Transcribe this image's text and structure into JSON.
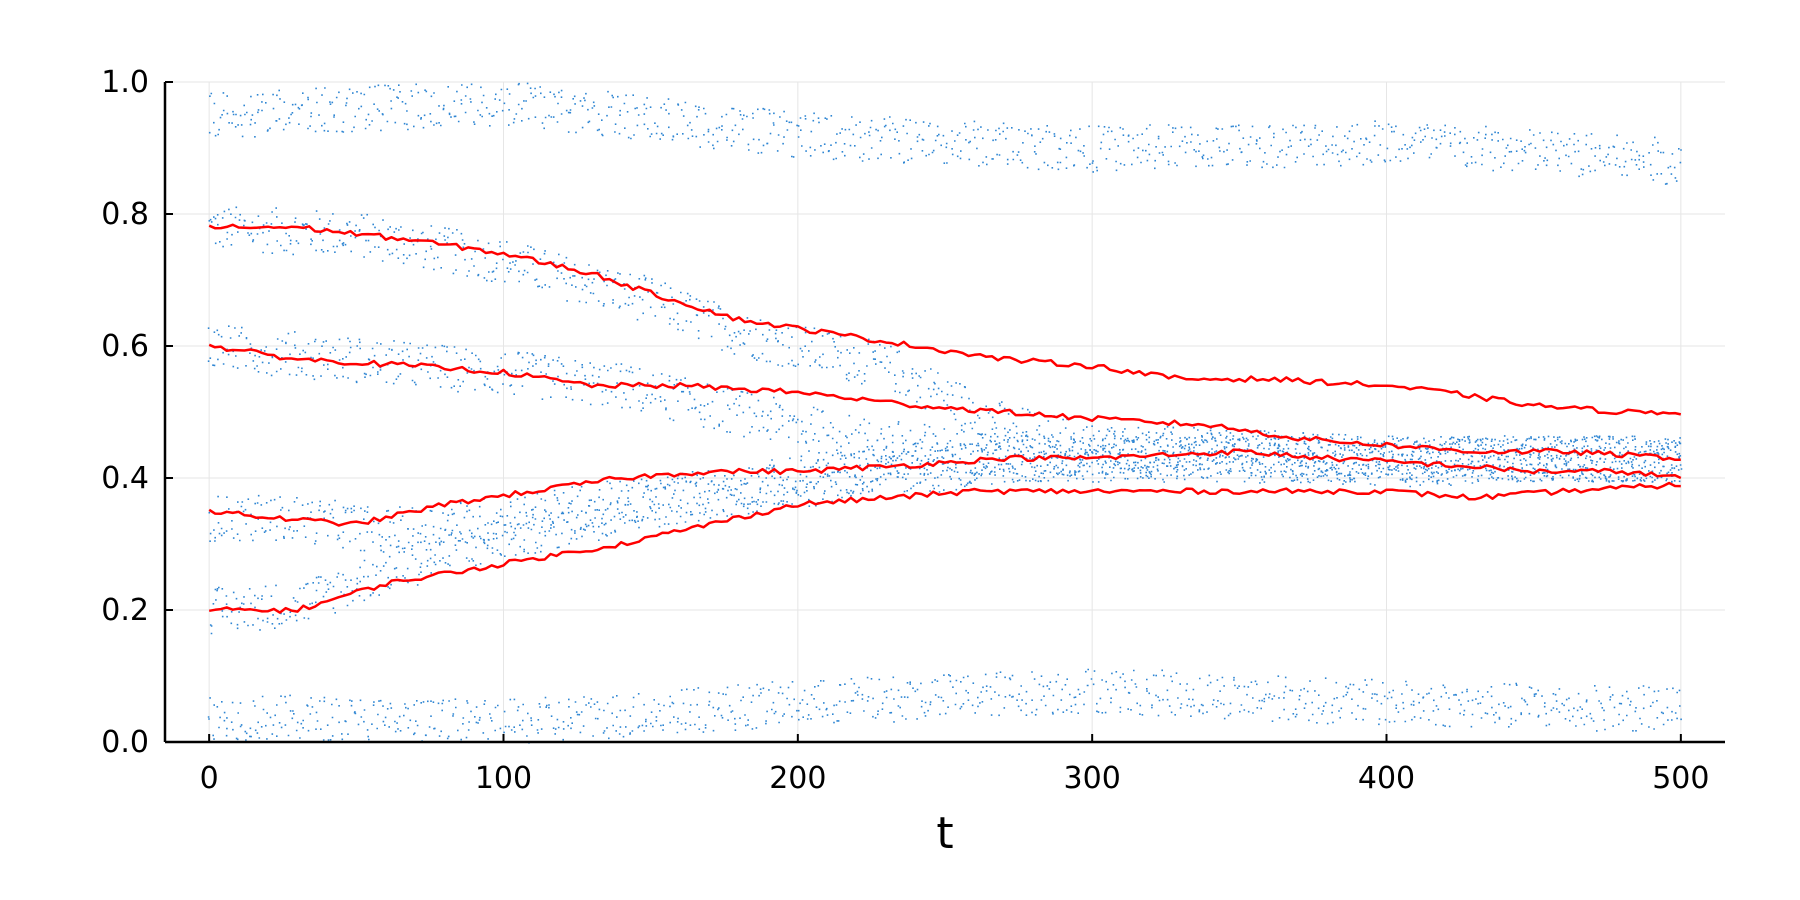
{
  "chart_data": {
    "type": "scatter",
    "title": "",
    "xlabel": "t",
    "ylabel": "",
    "xlim": [
      -15,
      515
    ],
    "ylim": [
      0,
      1
    ],
    "x_ticks": [
      "0",
      "100",
      "200",
      "300",
      "400",
      "500"
    ],
    "y_ticks": [
      "0.0",
      "0.2",
      "0.4",
      "0.6",
      "0.8",
      "1.0"
    ],
    "grid": true,
    "legend": "none",
    "colors": {
      "scatter": "#2f86d3",
      "lines": "#ff0000",
      "grid": "#e6e6e6",
      "axis": "#000000"
    },
    "series": [
      {
        "kind": "scatter-band",
        "points": [
          [
            0,
            0.78
          ],
          [
            50,
            0.77
          ],
          [
            100,
            0.73
          ],
          [
            150,
            0.67
          ],
          [
            180,
            0.62
          ],
          [
            230,
            0.57
          ],
          [
            270,
            0.48
          ],
          [
            300,
            0.45
          ],
          [
            350,
            0.44
          ],
          [
            400,
            0.43
          ],
          [
            450,
            0.43
          ],
          [
            500,
            0.43
          ]
        ]
      },
      {
        "kind": "scatter-band",
        "points": [
          [
            0,
            0.6
          ],
          [
            50,
            0.58
          ],
          [
            100,
            0.56
          ],
          [
            140,
            0.54
          ],
          [
            180,
            0.5
          ],
          [
            220,
            0.46
          ],
          [
            260,
            0.44
          ],
          [
            300,
            0.43
          ],
          [
            350,
            0.43
          ],
          [
            400,
            0.42
          ],
          [
            450,
            0.43
          ],
          [
            500,
            0.43
          ]
        ]
      },
      {
        "kind": "scatter-band",
        "points": [
          [
            0,
            0.34
          ],
          [
            30,
            0.34
          ],
          [
            60,
            0.32
          ],
          [
            100,
            0.34
          ],
          [
            150,
            0.37
          ],
          [
            200,
            0.4
          ],
          [
            240,
            0.42
          ],
          [
            280,
            0.43
          ],
          [
            350,
            0.44
          ],
          [
            400,
            0.43
          ],
          [
            450,
            0.43
          ],
          [
            500,
            0.43
          ]
        ]
      },
      {
        "kind": "scatter-band",
        "points": [
          [
            0,
            0.2
          ],
          [
            30,
            0.21
          ],
          [
            60,
            0.26
          ],
          [
            100,
            0.31
          ],
          [
            150,
            0.36
          ],
          [
            200,
            0.39
          ],
          [
            240,
            0.41
          ],
          [
            280,
            0.43
          ],
          [
            350,
            0.43
          ],
          [
            400,
            0.43
          ],
          [
            450,
            0.43
          ],
          [
            500,
            0.43
          ]
        ]
      },
      {
        "kind": "scatter-band",
        "points": [
          [
            0,
            0.95
          ],
          [
            100,
            0.97
          ],
          [
            200,
            0.92
          ],
          [
            300,
            0.9
          ],
          [
            400,
            0.91
          ],
          [
            500,
            0.88
          ]
        ]
      },
      {
        "kind": "scatter-band",
        "points": [
          [
            0,
            0.04
          ],
          [
            100,
            0.03
          ],
          [
            200,
            0.06
          ],
          [
            300,
            0.08
          ],
          [
            400,
            0.06
          ],
          [
            500,
            0.05
          ]
        ]
      },
      {
        "kind": "line",
        "points": [
          [
            0,
            0.78
          ],
          [
            30,
            0.78
          ],
          [
            70,
            0.76
          ],
          [
            100,
            0.74
          ],
          [
            130,
            0.71
          ],
          [
            150,
            0.68
          ],
          [
            180,
            0.64
          ],
          [
            210,
            0.62
          ],
          [
            240,
            0.6
          ],
          [
            270,
            0.58
          ],
          [
            300,
            0.57
          ],
          [
            330,
            0.55
          ],
          [
            360,
            0.55
          ],
          [
            400,
            0.54
          ],
          [
            420,
            0.53
          ],
          [
            450,
            0.51
          ],
          [
            480,
            0.5
          ],
          [
            500,
            0.5
          ]
        ]
      },
      {
        "kind": "line",
        "points": [
          [
            0,
            0.6
          ],
          [
            30,
            0.58
          ],
          [
            70,
            0.57
          ],
          [
            100,
            0.56
          ],
          [
            130,
            0.54
          ],
          [
            160,
            0.54
          ],
          [
            200,
            0.53
          ],
          [
            240,
            0.51
          ],
          [
            270,
            0.5
          ],
          [
            300,
            0.49
          ],
          [
            340,
            0.48
          ],
          [
            370,
            0.46
          ],
          [
            400,
            0.45
          ],
          [
            430,
            0.44
          ],
          [
            460,
            0.44
          ],
          [
            500,
            0.43
          ]
        ]
      },
      {
        "kind": "line",
        "points": [
          [
            0,
            0.35
          ],
          [
            20,
            0.34
          ],
          [
            50,
            0.33
          ],
          [
            80,
            0.36
          ],
          [
            110,
            0.38
          ],
          [
            140,
            0.4
          ],
          [
            170,
            0.41
          ],
          [
            200,
            0.41
          ],
          [
            240,
            0.42
          ],
          [
            270,
            0.43
          ],
          [
            300,
            0.43
          ],
          [
            350,
            0.44
          ],
          [
            380,
            0.43
          ],
          [
            420,
            0.42
          ],
          [
            450,
            0.41
          ],
          [
            480,
            0.41
          ],
          [
            500,
            0.4
          ]
        ]
      },
      {
        "kind": "line",
        "points": [
          [
            0,
            0.2
          ],
          [
            30,
            0.2
          ],
          [
            60,
            0.24
          ],
          [
            100,
            0.27
          ],
          [
            140,
            0.3
          ],
          [
            170,
            0.33
          ],
          [
            200,
            0.36
          ],
          [
            230,
            0.37
          ],
          [
            260,
            0.38
          ],
          [
            300,
            0.38
          ],
          [
            350,
            0.38
          ],
          [
            400,
            0.38
          ],
          [
            430,
            0.37
          ],
          [
            460,
            0.38
          ],
          [
            500,
            0.39
          ]
        ]
      }
    ]
  }
}
